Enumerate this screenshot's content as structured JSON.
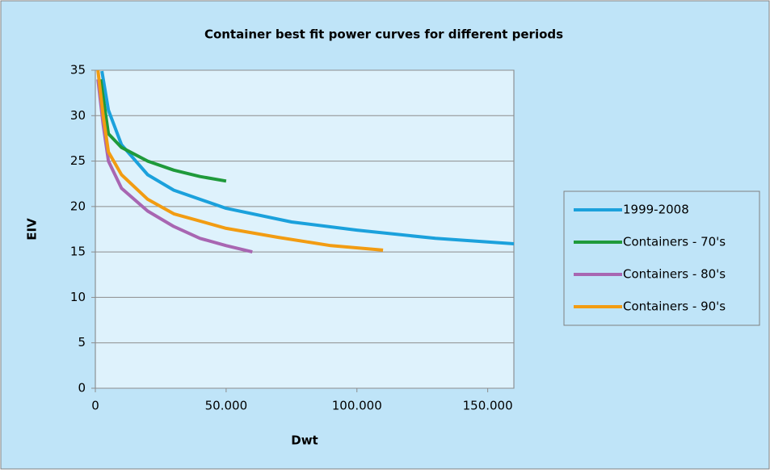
{
  "chart_data": {
    "type": "line",
    "title": "Container best fit power curves for different periods",
    "x_label": "Dwt",
    "y_label": "EIV",
    "xlim": [
      0,
      160000
    ],
    "ylim": [
      0,
      35
    ],
    "xticks": [
      0,
      {
        "value": 50000,
        "label": "50.000"
      },
      {
        "value": 100000,
        "label": "100.000"
      },
      {
        "value": 150000,
        "label": "150.000"
      }
    ],
    "yticks": [
      0,
      5,
      10,
      15,
      20,
      25,
      30,
      35
    ],
    "grid": true,
    "legend": "right",
    "series": [
      {
        "name": "1999-2008",
        "color": "#1ba1dc",
        "x": [
          2500,
          5000,
          10000,
          20000,
          30000,
          50000,
          75000,
          100000,
          130000,
          160000
        ],
        "values": [
          34.9,
          30.6,
          26.8,
          23.5,
          21.8,
          19.8,
          18.3,
          17.4,
          16.5,
          15.9
        ]
      },
      {
        "name": "Containers - 70's",
        "color": "#1f9a3b",
        "x": [
          2000,
          5000,
          10000,
          20000,
          30000,
          40000,
          50000
        ],
        "values": [
          34,
          28,
          26.5,
          25,
          24,
          23.3,
          22.8
        ]
      },
      {
        "name": "Containers - 80's",
        "color": "#a866b2",
        "x": [
          1000,
          3000,
          5000,
          10000,
          20000,
          30000,
          40000,
          50000,
          60000
        ],
        "values": [
          34,
          29,
          25,
          22,
          19.5,
          17.8,
          16.5,
          15.7,
          15
        ]
      },
      {
        "name": "Containers - 90's",
        "color": "#f29c12",
        "x": [
          1000,
          3000,
          5000,
          10000,
          20000,
          30000,
          50000,
          70000,
          90000,
          110000
        ],
        "values": [
          35,
          30,
          26,
          23.5,
          20.8,
          19.2,
          17.6,
          16.6,
          15.7,
          15.2
        ]
      }
    ]
  }
}
